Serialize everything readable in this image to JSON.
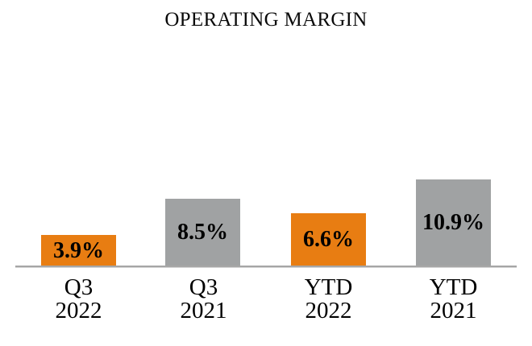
{
  "chart_data": {
    "type": "bar",
    "title": "OPERATING MARGIN",
    "categories": [
      "Q3 2022",
      "Q3 2021",
      "YTD 2022",
      "YTD 2021"
    ],
    "values": [
      3.9,
      8.5,
      6.6,
      10.9
    ],
    "xlabel": "",
    "ylabel": "",
    "ylim": [
      0,
      12
    ],
    "grid": false,
    "legend": false,
    "points": [
      {
        "category_line1": "Q3",
        "category_line2": "2022",
        "value": 3.9,
        "label": "3.9%",
        "color_key": "orange"
      },
      {
        "category_line1": "Q3",
        "category_line2": "2021",
        "value": 8.5,
        "label": "8.5%",
        "color_key": "gray"
      },
      {
        "category_line1": "YTD",
        "category_line2": "2022",
        "value": 6.6,
        "label": "6.6%",
        "color_key": "orange"
      },
      {
        "category_line1": "YTD",
        "category_line2": "2021",
        "value": 10.9,
        "label": "10.9%",
        "color_key": "gray"
      }
    ],
    "colors": {
      "orange": "#e87d12",
      "gray": "#a0a2a3",
      "axis_line": "#a6a6a6",
      "label_text": "#000000"
    }
  }
}
